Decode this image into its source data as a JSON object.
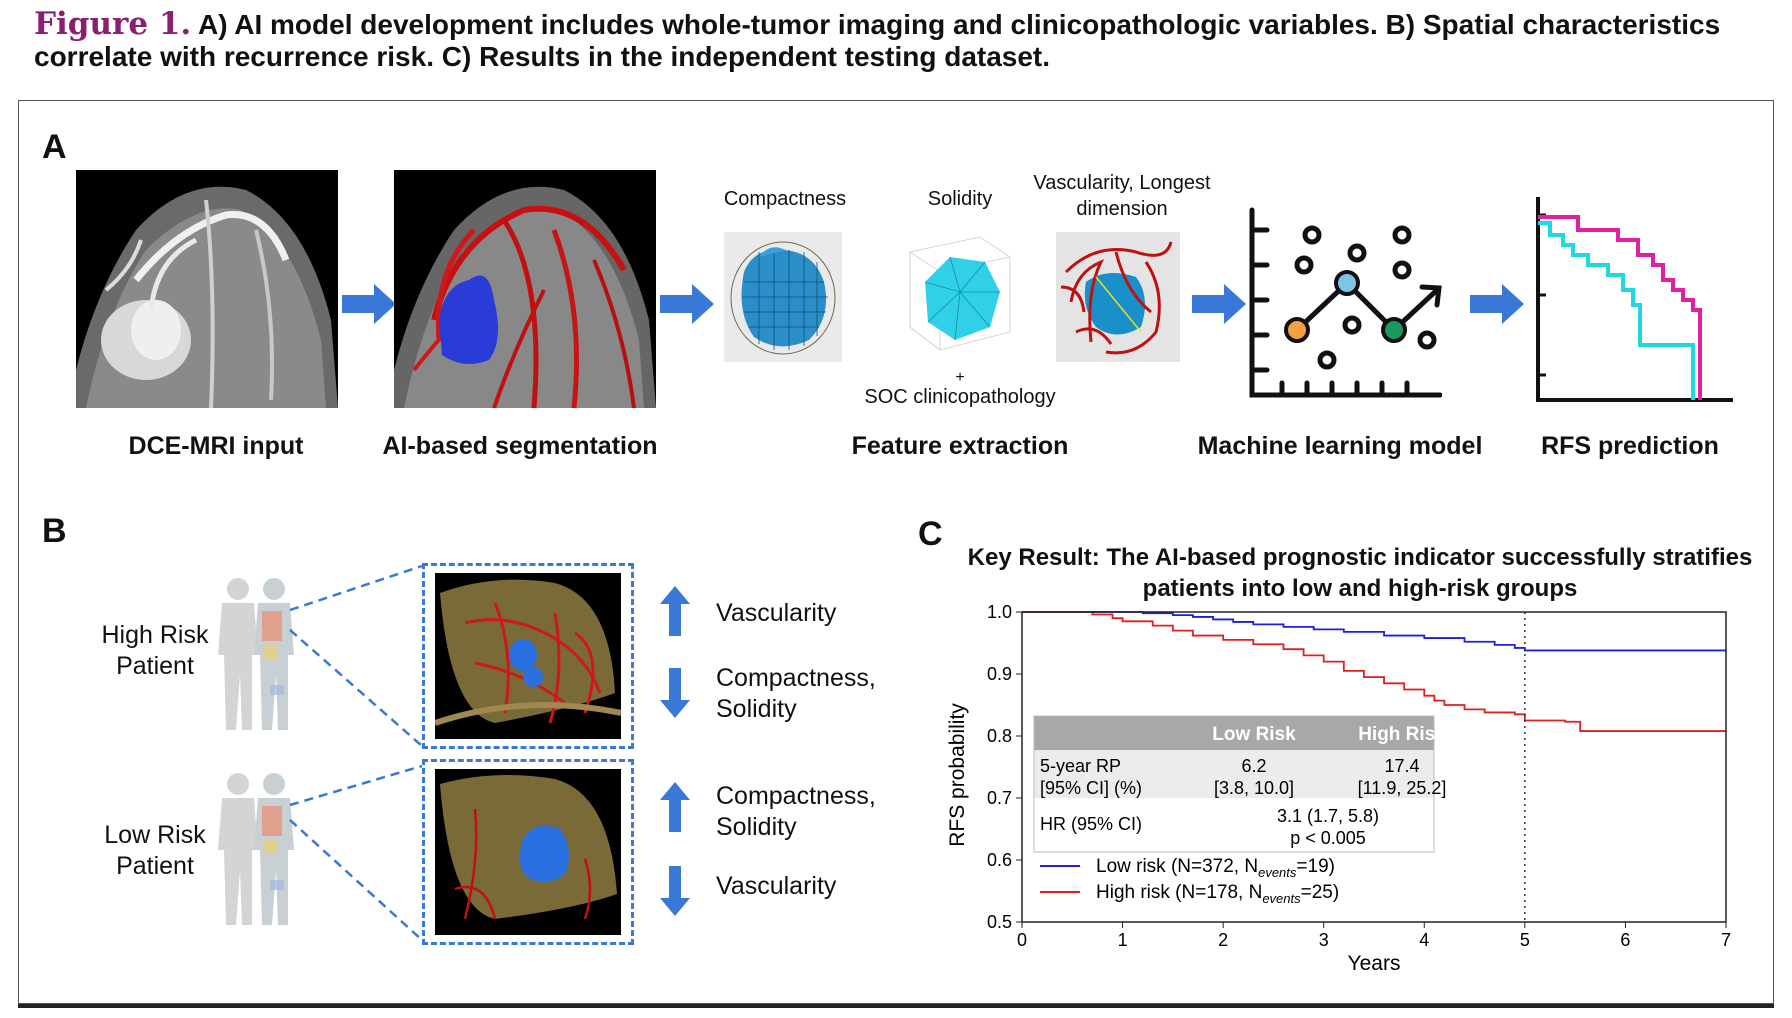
{
  "caption": {
    "figure_label": "Figure 1.",
    "text": "A) AI model development includes whole-tumor imaging and clinicopathologic variables. B) Spatial characteristics correlate with recurrence risk. C) Results in the independent testing dataset."
  },
  "panel_a": {
    "label": "A",
    "steps": [
      "DCE-MRI input",
      "AI-based segmentation",
      "Feature extraction",
      "Machine learning model",
      "RFS prediction"
    ],
    "features": [
      "Compactness",
      "Solidity",
      "Vascularity, Longest dimension"
    ],
    "plus": "+",
    "soc": "SOC clinicopathology"
  },
  "panel_b": {
    "label": "B",
    "high_risk": "High Risk Patient",
    "low_risk": "Low Risk Patient",
    "high_up": "Vascularity",
    "high_down": "Compactness, Solidity",
    "low_up": "Compactness, Solidity",
    "low_down": "Vascularity"
  },
  "panel_c": {
    "label": "C",
    "title": "Key Result: The AI-based prognostic indicator successfully stratifies patients into low and high-risk groups",
    "table": {
      "headers": [
        "",
        "Low Risk",
        "High Risk"
      ],
      "row1_label_1": "5-year RP",
      "row1_label_2": "[95% CI] (%)",
      "row1_low": "6.2",
      "row1_low_ci": "[3.8, 10.0]",
      "row1_high": "17.4",
      "row1_high_ci": "[11.9, 25.2]",
      "row2_label": "HR (95% CI)",
      "row2_value": "3.1 (1.7, 5.8)",
      "row2_p": "p < 0.005"
    },
    "legend_low_a": "Low risk (N=372, N",
    "legend_low_sub": "events",
    "legend_low_b": "=19)",
    "legend_high_a": "High risk (N=178, N",
    "legend_high_sub": "events",
    "legend_high_b": "=25)"
  },
  "chart_data": {
    "type": "line",
    "title": "Key Result: The AI-based prognostic indicator successfully stratifies patients into low and high-risk groups",
    "xlabel": "Years",
    "ylabel": "RFS probability",
    "xlim": [
      0,
      7
    ],
    "ylim": [
      0.5,
      1.0
    ],
    "xticks": [
      "0",
      "1",
      "2",
      "3",
      "4",
      "5",
      "6",
      "7"
    ],
    "yticks": [
      "0.5",
      "0.6",
      "0.7",
      "0.8",
      "0.9",
      "1.0"
    ],
    "vline_x": 5,
    "series": [
      {
        "name": "Low risk",
        "color": "#1f1fe0",
        "x": [
          0,
          1.2,
          1.5,
          1.7,
          1.9,
          2.1,
          2.3,
          2.6,
          2.9,
          3.2,
          3.6,
          4.0,
          4.4,
          4.7,
          4.9,
          5.0,
          7.0
        ],
        "y": [
          1.0,
          0.998,
          0.995,
          0.992,
          0.988,
          0.984,
          0.98,
          0.976,
          0.972,
          0.968,
          0.962,
          0.958,
          0.952,
          0.947,
          0.942,
          0.938,
          0.938
        ]
      },
      {
        "name": "High risk",
        "color": "#e01f1f",
        "x": [
          0,
          0.7,
          0.9,
          1.0,
          1.3,
          1.5,
          1.7,
          2.0,
          2.3,
          2.6,
          2.8,
          3.0,
          3.2,
          3.4,
          3.6,
          3.8,
          4.0,
          4.1,
          4.2,
          4.4,
          4.6,
          4.9,
          5.0,
          5.4,
          5.55,
          7.0
        ],
        "y": [
          1.0,
          0.996,
          0.99,
          0.985,
          0.978,
          0.97,
          0.962,
          0.955,
          0.948,
          0.94,
          0.93,
          0.92,
          0.905,
          0.895,
          0.885,
          0.875,
          0.865,
          0.857,
          0.85,
          0.843,
          0.838,
          0.835,
          0.825,
          0.823,
          0.808,
          0.808
        ]
      }
    ]
  }
}
